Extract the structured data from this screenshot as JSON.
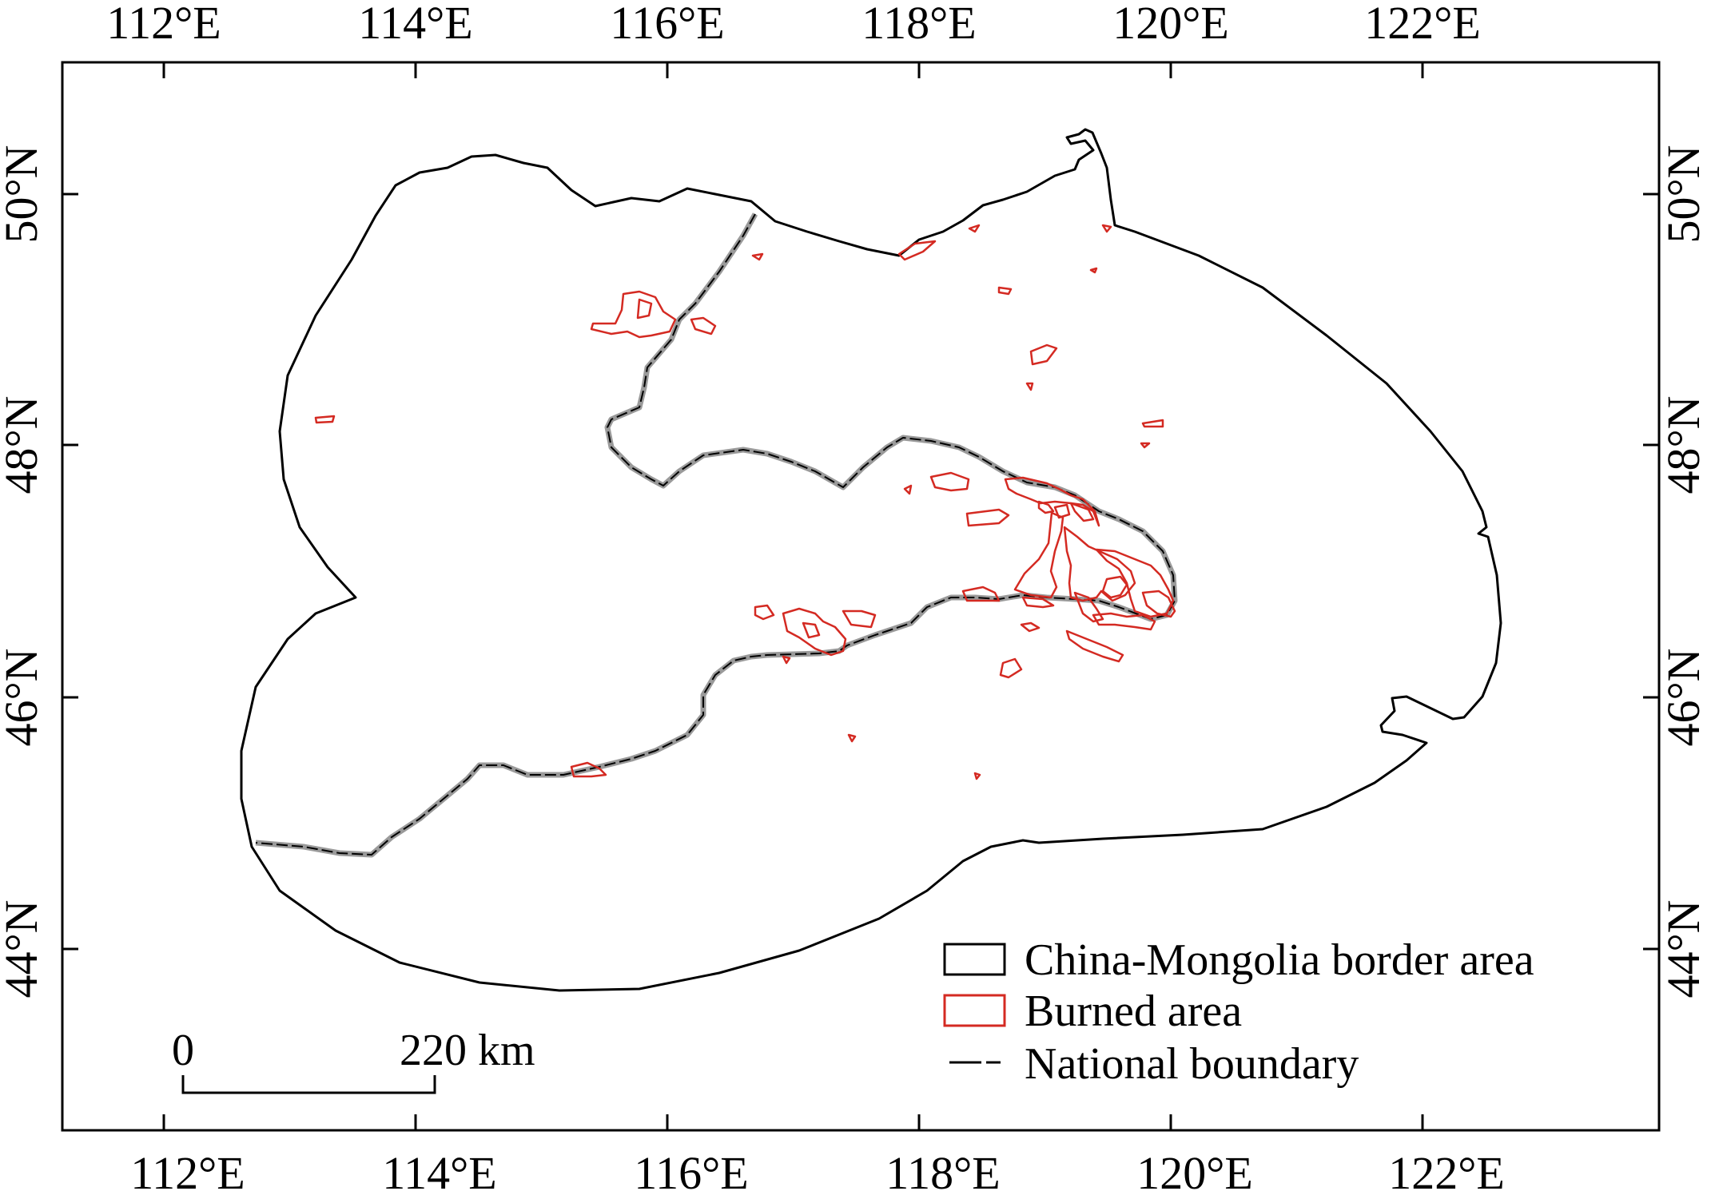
{
  "map": {
    "graticule": {
      "top_labels": [
        "112°E",
        "114°E",
        "116°E",
        "118°E",
        "120°E",
        "122°E"
      ],
      "bottom_labels": [
        "112°E",
        "114°E",
        "116°E",
        "118°E",
        "120°E",
        "122°E"
      ],
      "left_labels": [
        "50°N",
        "48°N",
        "46°N",
        "44°N"
      ],
      "right_labels": [
        "50°N",
        "48°N",
        "46°N",
        "44°N"
      ]
    },
    "legend": {
      "items": [
        {
          "label": "China-Mongolia border area",
          "symbol": "box",
          "color": "#000000"
        },
        {
          "label": "Burned area",
          "symbol": "box",
          "color": "#d42a22"
        },
        {
          "label": "National boundary",
          "symbol": "dash-line",
          "color": "#000000"
        }
      ]
    },
    "scale_bar": {
      "start_label": "0",
      "end_label": "220 km"
    },
    "colors": {
      "study_area_outline": "#000000",
      "burned_area": "#d42a22",
      "national_boundary": "#9a9a9a",
      "frame": "#000000"
    }
  }
}
